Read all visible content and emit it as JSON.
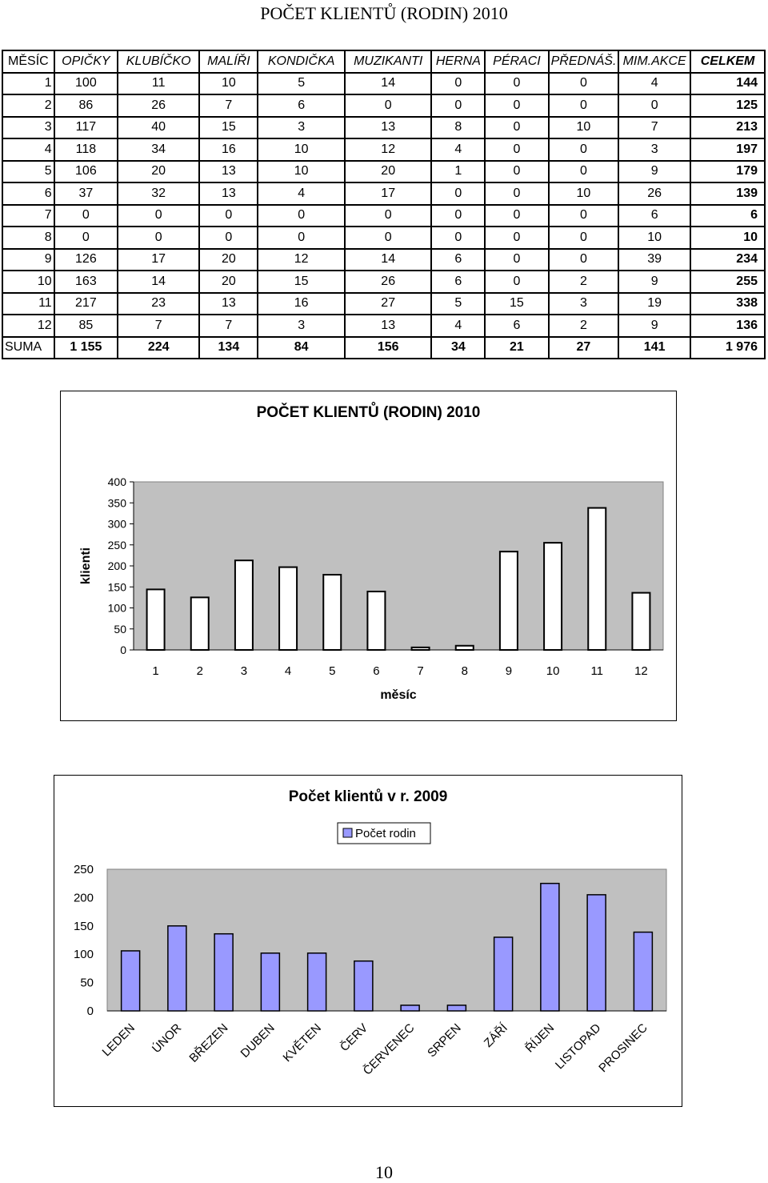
{
  "page_title": "POČET KLIENTŮ (RODIN) 2010",
  "table": {
    "headers": [
      "MĚSÍC",
      "OPIČKY",
      "KLUBÍČKO",
      "MALÍŘI",
      "KONDIČKA",
      "MUZIKANTI",
      "HERNA",
      "PÉRACI",
      "PŘEDNÁŠ.",
      "MIM.AKCE",
      "CELKEM"
    ],
    "rows": [
      [
        "1",
        "100",
        "11",
        "10",
        "5",
        "14",
        "0",
        "0",
        "0",
        "4",
        "144"
      ],
      [
        "2",
        "86",
        "26",
        "7",
        "6",
        "0",
        "0",
        "0",
        "0",
        "0",
        "125"
      ],
      [
        "3",
        "117",
        "40",
        "15",
        "3",
        "13",
        "8",
        "0",
        "10",
        "7",
        "213"
      ],
      [
        "4",
        "118",
        "34",
        "16",
        "10",
        "12",
        "4",
        "0",
        "0",
        "3",
        "197"
      ],
      [
        "5",
        "106",
        "20",
        "13",
        "10",
        "20",
        "1",
        "0",
        "0",
        "9",
        "179"
      ],
      [
        "6",
        "37",
        "32",
        "13",
        "4",
        "17",
        "0",
        "0",
        "10",
        "26",
        "139"
      ],
      [
        "7",
        "0",
        "0",
        "0",
        "0",
        "0",
        "0",
        "0",
        "0",
        "6",
        "6"
      ],
      [
        "8",
        "0",
        "0",
        "0",
        "0",
        "0",
        "0",
        "0",
        "0",
        "10",
        "10"
      ],
      [
        "9",
        "126",
        "17",
        "20",
        "12",
        "14",
        "6",
        "0",
        "0",
        "39",
        "234"
      ],
      [
        "10",
        "163",
        "14",
        "20",
        "15",
        "26",
        "6",
        "0",
        "2",
        "9",
        "255"
      ],
      [
        "11",
        "217",
        "23",
        "13",
        "16",
        "27",
        "5",
        "15",
        "3",
        "19",
        "338"
      ],
      [
        "12",
        "85",
        "7",
        "7",
        "3",
        "13",
        "4",
        "6",
        "2",
        "9",
        "136"
      ]
    ],
    "sum_row": [
      "SUMA",
      "1 155",
      "224",
      "134",
      "84",
      "156",
      "34",
      "21",
      "27",
      "141",
      "1 976"
    ]
  },
  "chart_data": [
    {
      "type": "bar",
      "title": "POČET KLIENTŮ (RODIN) 2010",
      "xlabel": "měsíc",
      "ylabel": "klienti",
      "categories": [
        "1",
        "2",
        "3",
        "4",
        "5",
        "6",
        "7",
        "8",
        "9",
        "10",
        "11",
        "12"
      ],
      "values": [
        144,
        125,
        213,
        197,
        179,
        139,
        6,
        10,
        234,
        255,
        338,
        136
      ],
      "ylim": [
        0,
        400
      ],
      "yticks": [
        "0",
        "50",
        "100",
        "150",
        "200",
        "250",
        "300",
        "350",
        "400"
      ],
      "grid": false,
      "colors": {
        "bar": "#ffffff",
        "plot_bg": "#c0c0c0"
      }
    },
    {
      "type": "bar",
      "title": "Počet klientů v r. 2009",
      "legend": "Počet rodin",
      "legend_position": "top",
      "categories": [
        "LEDEN",
        "ÚNOR",
        "BŘEZEN",
        "DUBEN",
        "KVĚTEN",
        "ČERV",
        "ČERVENEC",
        "SRPEN",
        "ZÁŘÍ",
        "ŘÍJEN",
        "LISTOPAD",
        "PROSINEC"
      ],
      "values": [
        106,
        150,
        136,
        102,
        102,
        88,
        10,
        10,
        130,
        225,
        205,
        139
      ],
      "ylim": [
        0,
        250
      ],
      "yticks": [
        "0",
        "50",
        "100",
        "150",
        "200",
        "250"
      ],
      "grid": false,
      "colors": {
        "bar": "#9999ff",
        "plot_bg": "#c0c0c0"
      }
    }
  ],
  "page_number": "10"
}
